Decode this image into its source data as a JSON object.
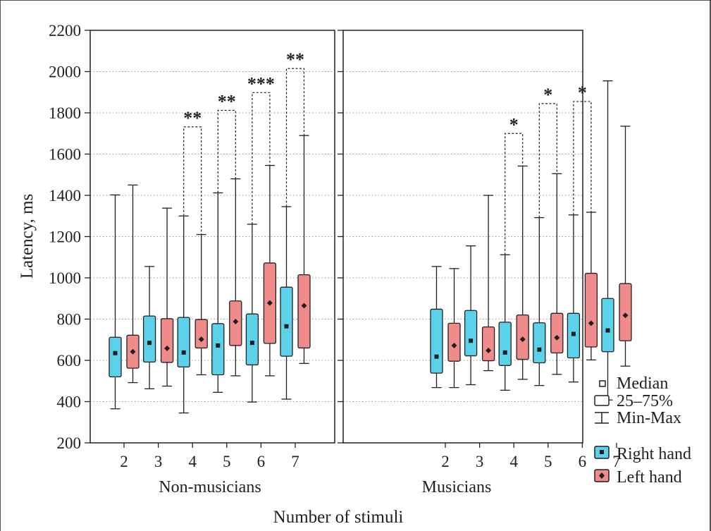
{
  "chart_data": {
    "type": "boxplot",
    "ylabel": "Latency, ms",
    "xlabel": "Number of stimuli",
    "ylim": [
      200,
      2200
    ],
    "yticks": [
      200,
      400,
      600,
      800,
      1000,
      1200,
      1400,
      1600,
      1800,
      2000,
      2200
    ],
    "grid": "horizontal dotted",
    "legend_position": "right",
    "legend_boxplot": {
      "median": "Median",
      "box": "25–75%",
      "whisker": "Min-Max"
    },
    "series_names": [
      "Right hand",
      "Left hand"
    ],
    "series_colors": [
      "#5bd2ea",
      "#f08b8b"
    ],
    "categories": [
      "2",
      "3",
      "4",
      "5",
      "6",
      "7"
    ],
    "panels": [
      {
        "label": "Non-musicians",
        "groups": [
          {
            "x": "2",
            "right": {
              "min": 365,
              "q1": 520,
              "median": 635,
              "q3": 712,
              "max": 1402
            },
            "left": {
              "min": 492,
              "q1": 562,
              "median": 642,
              "q3": 722,
              "max": 1450
            }
          },
          {
            "x": "3",
            "right": {
              "min": 462,
              "q1": 592,
              "median": 685,
              "q3": 815,
              "max": 1055
            },
            "left": {
              "min": 475,
              "q1": 590,
              "median": 658,
              "q3": 802,
              "max": 1338
            }
          },
          {
            "x": "4",
            "right": {
              "min": 345,
              "q1": 568,
              "median": 638,
              "q3": 808,
              "max": 1300
            },
            "left": {
              "min": 530,
              "q1": 660,
              "median": 702,
              "q3": 798,
              "max": 1210
            }
          },
          {
            "x": "5",
            "right": {
              "min": 445,
              "q1": 530,
              "median": 672,
              "q3": 778,
              "max": 1412
            },
            "left": {
              "min": 525,
              "q1": 672,
              "median": 788,
              "q3": 888,
              "max": 1480
            }
          },
          {
            "x": "6",
            "right": {
              "min": 398,
              "q1": 578,
              "median": 685,
              "q3": 825,
              "max": 1260
            },
            "left": {
              "min": 525,
              "q1": 682,
              "median": 878,
              "q3": 1072,
              "max": 1545
            }
          },
          {
            "x": "7",
            "right": {
              "min": 412,
              "q1": 620,
              "median": 765,
              "q3": 955,
              "max": 1345
            },
            "left": {
              "min": 585,
              "q1": 660,
              "median": 865,
              "q3": 1015,
              "max": 1690
            }
          }
        ],
        "significance": [
          {
            "x": "4",
            "label": "**",
            "top": 1732
          },
          {
            "x": "5",
            "label": "**",
            "top": 1812
          },
          {
            "x": "6",
            "label": "***",
            "top": 1898
          },
          {
            "x": "7",
            "label": "**",
            "top": 2015
          }
        ]
      },
      {
        "label": "Musicians",
        "groups": [
          {
            "x": "2",
            "right": {
              "min": 468,
              "q1": 538,
              "median": 618,
              "q3": 848,
              "max": 1055
            },
            "left": {
              "min": 468,
              "q1": 596,
              "median": 672,
              "q3": 780,
              "max": 1045
            }
          },
          {
            "x": "3",
            "right": {
              "min": 482,
              "q1": 622,
              "median": 695,
              "q3": 842,
              "max": 1155
            },
            "left": {
              "min": 550,
              "q1": 598,
              "median": 648,
              "q3": 762,
              "max": 1400
            }
          },
          {
            "x": "4",
            "right": {
              "min": 455,
              "q1": 575,
              "median": 638,
              "q3": 785,
              "max": 1112
            },
            "left": {
              "min": 508,
              "q1": 605,
              "median": 702,
              "q3": 820,
              "max": 1542
            }
          },
          {
            "x": "5",
            "right": {
              "min": 478,
              "q1": 588,
              "median": 652,
              "q3": 782,
              "max": 1292
            },
            "left": {
              "min": 532,
              "q1": 636,
              "median": 710,
              "q3": 828,
              "max": 1505
            }
          },
          {
            "x": "6",
            "right": {
              "min": 495,
              "q1": 612,
              "median": 728,
              "q3": 828,
              "max": 1305
            },
            "left": {
              "min": 602,
              "q1": 665,
              "median": 780,
              "q3": 1022,
              "max": 1318
            }
          },
          {
            "x": "7",
            "right": {
              "min": 408,
              "q1": 642,
              "median": 745,
              "q3": 900,
              "max": 1955
            },
            "left": {
              "min": 572,
              "q1": 695,
              "median": 818,
              "q3": 972,
              "max": 1735
            }
          }
        ],
        "significance": [
          {
            "x": "4",
            "label": "*",
            "top": 1700
          },
          {
            "x": "5",
            "label": "*",
            "top": 1845
          },
          {
            "x": "6",
            "label": "*",
            "top": 1855
          }
        ]
      }
    ]
  }
}
